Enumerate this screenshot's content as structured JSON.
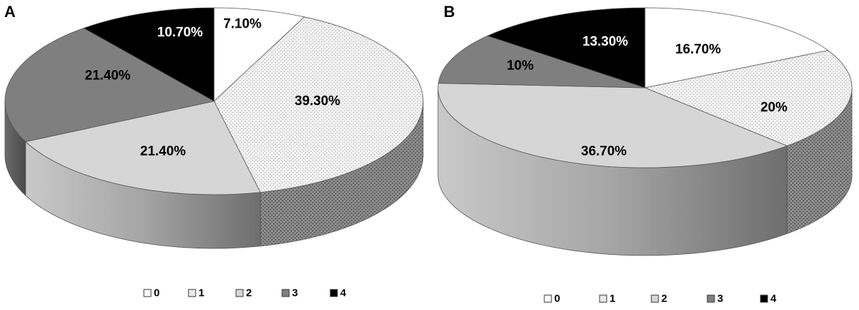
{
  "chart_data": [
    {
      "type": "pie",
      "panel_label": "A",
      "categories": [
        "0",
        "1",
        "2",
        "3",
        "4"
      ],
      "values": [
        7.1,
        39.3,
        21.4,
        21.4,
        10.7
      ],
      "labels": [
        "7.10%",
        "39.30%",
        "21.40%",
        "21.40%",
        "10.70%"
      ],
      "legend": [
        "0",
        "1",
        "2",
        "3",
        "4"
      ],
      "legend_position": "bottom",
      "three_d": true
    },
    {
      "type": "pie",
      "panel_label": "B",
      "categories": [
        "0",
        "1",
        "2",
        "3",
        "4"
      ],
      "values": [
        16.7,
        20,
        36.7,
        10,
        13.3
      ],
      "labels": [
        "16.70%",
        "20%",
        "36.70%",
        "10%",
        "13.30%"
      ],
      "legend": [
        "0",
        "1",
        "2",
        "3",
        "4"
      ],
      "legend_position": "bottom",
      "three_d": true
    }
  ],
  "colors": {
    "category_0": "#ffffff",
    "category_1": "#f2f2f2",
    "category_2": "#d6d6d6",
    "category_3": "#7f7f7f",
    "category_4": "#000000",
    "outline": "#555555"
  }
}
